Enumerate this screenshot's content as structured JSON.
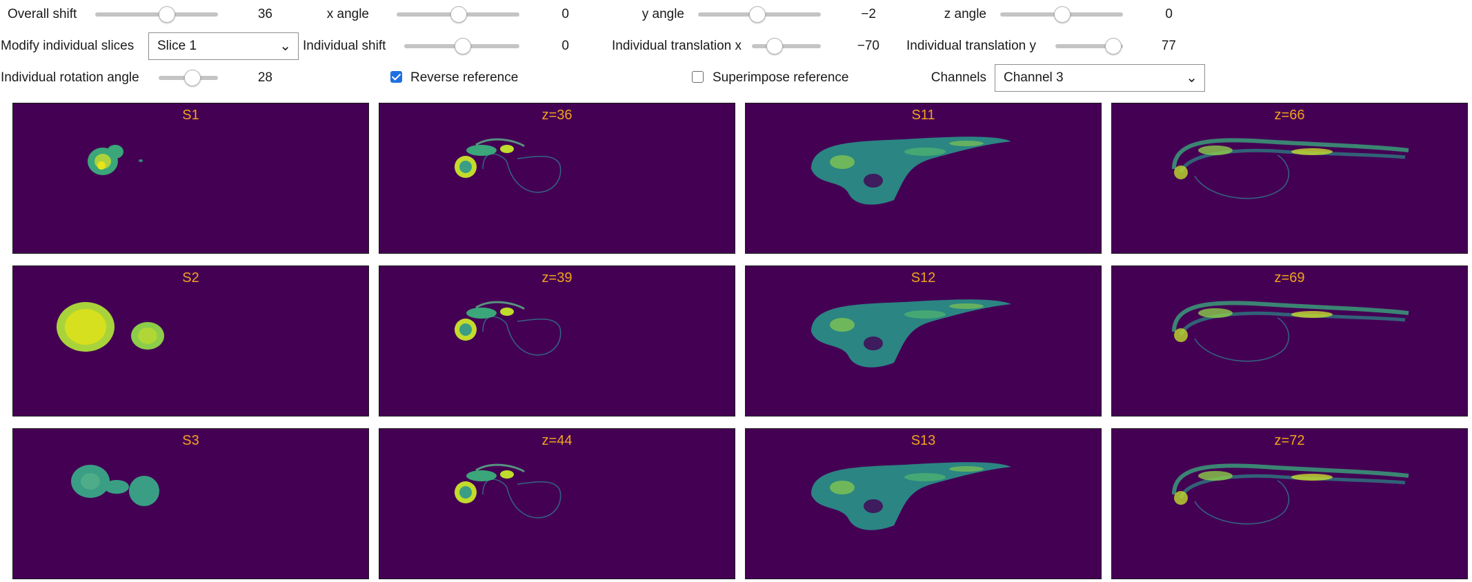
{
  "controls": {
    "overall_shift": {
      "label": "Overall shift",
      "value": "36",
      "level": 0.58
    },
    "x_angle": {
      "label": "x angle",
      "value": "0",
      "level": 0.5
    },
    "y_angle": {
      "label": "y angle",
      "value": "−2",
      "level": 0.48
    },
    "z_angle": {
      "label": "z angle",
      "value": "0",
      "level": 0.5
    },
    "modify_slices": {
      "label": "Modify individual slices",
      "selected": "Slice 1"
    },
    "individual_shift": {
      "label": "Individual shift",
      "value": "0",
      "level": 0.5
    },
    "translation_x": {
      "label": "Individual translation x",
      "value": "−70",
      "level": 0.32
    },
    "translation_y": {
      "label": "Individual translation y",
      "value": "77",
      "level": 0.85
    },
    "rotation_angle": {
      "label": "Individual rotation angle",
      "value": "28",
      "level": 0.56
    },
    "reverse_reference": {
      "label": "Reverse reference",
      "checked": true
    },
    "superimpose_reference": {
      "label": "Superimpose reference",
      "checked": false
    },
    "channels": {
      "label": "Channels",
      "selected": "Channel 3"
    }
  },
  "colors": {
    "panel_bg": "#440154",
    "title": "#f2a31b",
    "checkbox_on": "#1f6fe0"
  },
  "panels": [
    {
      "title": "S1",
      "shape": "blob-small"
    },
    {
      "title": "z=36",
      "shape": "fish-eye"
    },
    {
      "title": "S11",
      "shape": "fish-body"
    },
    {
      "title": "z=66",
      "shape": "fish-full"
    },
    {
      "title": "S2",
      "shape": "blob-large"
    },
    {
      "title": "z=39",
      "shape": "fish-eye"
    },
    {
      "title": "S12",
      "shape": "fish-body"
    },
    {
      "title": "z=69",
      "shape": "fish-full"
    },
    {
      "title": "S3",
      "shape": "blob-medium"
    },
    {
      "title": "z=44",
      "shape": "fish-eye"
    },
    {
      "title": "S13",
      "shape": "fish-body"
    },
    {
      "title": "z=72",
      "shape": "fish-full"
    }
  ]
}
